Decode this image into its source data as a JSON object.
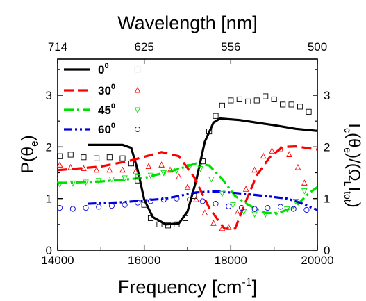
{
  "chart_data": {
    "type": "line",
    "xlabel": "Frequency [cm",
    "xlabel_sup": "-1",
    "xlabel_end": "]",
    "top_xlabel": "Wavelength [nm]",
    "top_ticks": [
      "714",
      "625",
      "556",
      "500"
    ],
    "top_tick_freq": [
      14000,
      16000,
      18000,
      20000
    ],
    "ylabel": "P(θ",
    "ylabel_sub": "e",
    "ylabel_end": ")",
    "y2label": "I",
    "y2label_sub1": "c",
    "y2label_mid": "(θ",
    "y2label_sub2": "e",
    "y2label_mid2": ")/(Ω",
    "y2label_sub3": "L",
    "y2label_mid3": "I",
    "y2label_sub4": "tot",
    "y2label_end": ")",
    "xlim": [
      14000,
      20000
    ],
    "ylim": [
      0,
      3.7
    ],
    "xticks": [
      "14000",
      "16000",
      "18000",
      "20000"
    ],
    "xtick_values": [
      14000,
      16000,
      18000,
      20000
    ],
    "yticks": [
      "0",
      "1",
      "2",
      "3"
    ],
    "ytick_values": [
      0,
      1,
      2,
      3
    ],
    "legend_position": "top-left",
    "series": [
      {
        "name": "0",
        "name_sup": "0",
        "color": "#000000",
        "dash": "solid",
        "marker": "square",
        "line": [
          [
            14700,
            2.04
          ],
          [
            15500,
            2.04
          ],
          [
            15700,
            1.98
          ],
          [
            15850,
            1.55
          ],
          [
            16000,
            0.98
          ],
          [
            16200,
            0.64
          ],
          [
            16500,
            0.5
          ],
          [
            16800,
            0.52
          ],
          [
            17000,
            0.75
          ],
          [
            17200,
            1.35
          ],
          [
            17400,
            2.1
          ],
          [
            17600,
            2.47
          ],
          [
            17750,
            2.55
          ],
          [
            18200,
            2.52
          ],
          [
            19000,
            2.42
          ],
          [
            19500,
            2.35
          ],
          [
            20000,
            2.31
          ]
        ],
        "points": [
          [
            14050,
            1.82
          ],
          [
            14300,
            1.85
          ],
          [
            14600,
            1.8
          ],
          [
            14900,
            1.78
          ],
          [
            15200,
            1.8
          ],
          [
            15500,
            1.78
          ],
          [
            15700,
            1.68
          ],
          [
            15850,
            1.35
          ],
          [
            16000,
            0.88
          ],
          [
            16150,
            0.62
          ],
          [
            16350,
            0.5
          ],
          [
            16550,
            0.48
          ],
          [
            16750,
            0.5
          ],
          [
            16950,
            0.62
          ],
          [
            17150,
            1.05
          ],
          [
            17350,
            1.72
          ],
          [
            17500,
            2.3
          ],
          [
            17650,
            2.6
          ],
          [
            17800,
            2.8
          ],
          [
            18000,
            2.9
          ],
          [
            18200,
            2.92
          ],
          [
            18400,
            2.88
          ],
          [
            18600,
            2.9
          ],
          [
            18800,
            2.98
          ],
          [
            19000,
            2.92
          ],
          [
            19200,
            2.82
          ],
          [
            19400,
            2.82
          ],
          [
            19600,
            2.78
          ],
          [
            19800,
            2.68
          ]
        ]
      },
      {
        "name": "30",
        "name_sup": "0",
        "color": "#ff0000",
        "dash": "dash",
        "marker": "triangle",
        "line": [
          [
            14000,
            1.55
          ],
          [
            15000,
            1.62
          ],
          [
            15700,
            1.74
          ],
          [
            16400,
            1.9
          ],
          [
            16800,
            1.82
          ],
          [
            17150,
            1.42
          ],
          [
            17500,
            0.82
          ],
          [
            17850,
            0.42
          ],
          [
            18100,
            0.42
          ],
          [
            18350,
            0.95
          ],
          [
            18600,
            1.45
          ],
          [
            18900,
            1.8
          ],
          [
            19200,
            2.0
          ],
          [
            19500,
            2.01
          ],
          [
            20000,
            1.95
          ]
        ],
        "points": [
          [
            14050,
            1.65
          ],
          [
            14300,
            1.6
          ],
          [
            14600,
            1.58
          ],
          [
            14900,
            1.55
          ],
          [
            15200,
            1.55
          ],
          [
            15500,
            1.55
          ],
          [
            15800,
            1.52
          ],
          [
            16100,
            1.62
          ],
          [
            16400,
            1.65
          ],
          [
            16600,
            1.55
          ],
          [
            16800,
            1.42
          ],
          [
            17000,
            1.22
          ],
          [
            17200,
            0.98
          ],
          [
            17400,
            0.72
          ],
          [
            17600,
            0.52
          ],
          [
            17800,
            0.42
          ],
          [
            17950,
            0.44
          ],
          [
            18150,
            0.72
          ],
          [
            18350,
            1.18
          ],
          [
            18550,
            1.55
          ],
          [
            18750,
            1.82
          ],
          [
            18950,
            1.92
          ],
          [
            19150,
            1.95
          ],
          [
            19350,
            1.85
          ],
          [
            19550,
            1.6
          ],
          [
            19700,
            1.3
          ]
        ]
      },
      {
        "name": "45",
        "name_sup": "0",
        "color": "#00e000",
        "dash": "dashdot",
        "marker": "triangle-down",
        "line": [
          [
            14000,
            1.3
          ],
          [
            15000,
            1.33
          ],
          [
            16000,
            1.4
          ],
          [
            16700,
            1.55
          ],
          [
            17200,
            1.68
          ],
          [
            17500,
            1.64
          ],
          [
            17800,
            1.38
          ],
          [
            18100,
            1.05
          ],
          [
            18400,
            0.88
          ],
          [
            18800,
            0.72
          ],
          [
            19100,
            0.72
          ],
          [
            19500,
            0.85
          ],
          [
            19800,
            1.1
          ],
          [
            20000,
            1.22
          ]
        ],
        "points": [
          [
            14050,
            1.28
          ],
          [
            14350,
            1.3
          ],
          [
            14650,
            1.32
          ],
          [
            14950,
            1.35
          ],
          [
            15250,
            1.38
          ],
          [
            15550,
            1.4
          ],
          [
            15850,
            1.42
          ],
          [
            16150,
            1.45
          ],
          [
            16450,
            1.5
          ],
          [
            16750,
            1.55
          ],
          [
            17050,
            1.62
          ],
          [
            17300,
            1.58
          ],
          [
            17550,
            1.38
          ],
          [
            17800,
            1.1
          ],
          [
            18050,
            0.88
          ],
          [
            18300,
            0.75
          ],
          [
            18550,
            0.7
          ],
          [
            18800,
            0.7
          ],
          [
            19050,
            0.72
          ],
          [
            19300,
            0.8
          ],
          [
            19500,
            0.95
          ],
          [
            19700,
            1.15
          ]
        ]
      },
      {
        "name": "60",
        "name_sup": "0",
        "color": "#0000dd",
        "dash": "dashdotdot",
        "marker": "circle",
        "line": [
          [
            14700,
            0.9
          ],
          [
            15500,
            0.93
          ],
          [
            16500,
            1.0
          ],
          [
            17200,
            1.12
          ],
          [
            17700,
            1.14
          ],
          [
            18200,
            1.1
          ],
          [
            18800,
            1.05
          ],
          [
            19300,
            1.0
          ],
          [
            19600,
            0.92
          ],
          [
            19800,
            0.85
          ],
          [
            20000,
            0.78
          ]
        ],
        "points": [
          [
            14050,
            0.82
          ],
          [
            14350,
            0.8
          ],
          [
            14650,
            0.82
          ],
          [
            14950,
            0.84
          ],
          [
            15250,
            0.86
          ],
          [
            15550,
            0.88
          ],
          [
            15850,
            0.92
          ],
          [
            16150,
            0.95
          ],
          [
            16450,
            0.98
          ],
          [
            16750,
            1.0
          ],
          [
            17050,
            0.98
          ],
          [
            17350,
            0.95
          ],
          [
            17650,
            0.9
          ],
          [
            17950,
            0.85
          ],
          [
            18250,
            0.82
          ],
          [
            18550,
            0.8
          ],
          [
            18850,
            0.82
          ],
          [
            19150,
            0.84
          ],
          [
            19450,
            0.8
          ],
          [
            19750,
            0.78
          ]
        ]
      }
    ]
  }
}
